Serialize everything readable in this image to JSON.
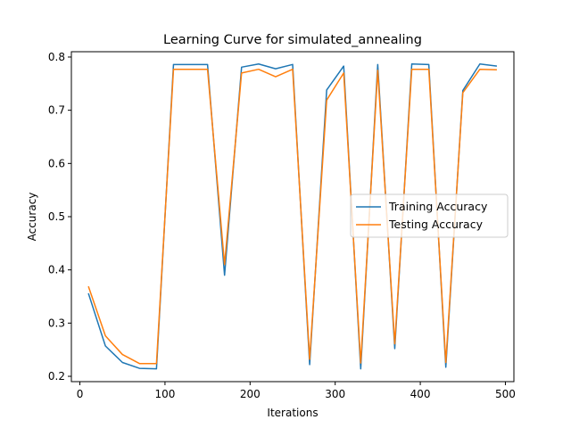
{
  "chart_data": {
    "type": "line",
    "title": "Learning Curve for simulated_annealing",
    "xlabel": "Iterations",
    "ylabel": "Accuracy",
    "xlim": [
      -10,
      510
    ],
    "ylim": [
      0.19,
      0.81
    ],
    "xticks": [
      0,
      100,
      200,
      300,
      400,
      500
    ],
    "yticks": [
      0.2,
      0.3,
      0.4,
      0.5,
      0.6,
      0.7,
      0.8
    ],
    "grid": false,
    "legend_position": "center-right",
    "x": [
      10,
      30,
      50,
      70,
      90,
      110,
      130,
      150,
      170,
      190,
      210,
      230,
      250,
      270,
      290,
      310,
      330,
      350,
      370,
      390,
      410,
      430,
      450,
      470,
      490
    ],
    "series": [
      {
        "name": "Training Accuracy",
        "color": "#1f77b4",
        "values": [
          0.356,
          0.257,
          0.226,
          0.215,
          0.214,
          0.786,
          0.786,
          0.786,
          0.39,
          0.781,
          0.787,
          0.778,
          0.786,
          0.222,
          0.738,
          0.783,
          0.214,
          0.786,
          0.252,
          0.787,
          0.786,
          0.217,
          0.737,
          0.787,
          0.783
        ]
      },
      {
        "name": "Testing Accuracy",
        "color": "#ff7f0e",
        "values": [
          0.369,
          0.276,
          0.241,
          0.224,
          0.224,
          0.777,
          0.777,
          0.777,
          0.41,
          0.77,
          0.777,
          0.763,
          0.777,
          0.232,
          0.719,
          0.77,
          0.225,
          0.775,
          0.261,
          0.777,
          0.777,
          0.226,
          0.733,
          0.777,
          0.776
        ]
      }
    ]
  }
}
